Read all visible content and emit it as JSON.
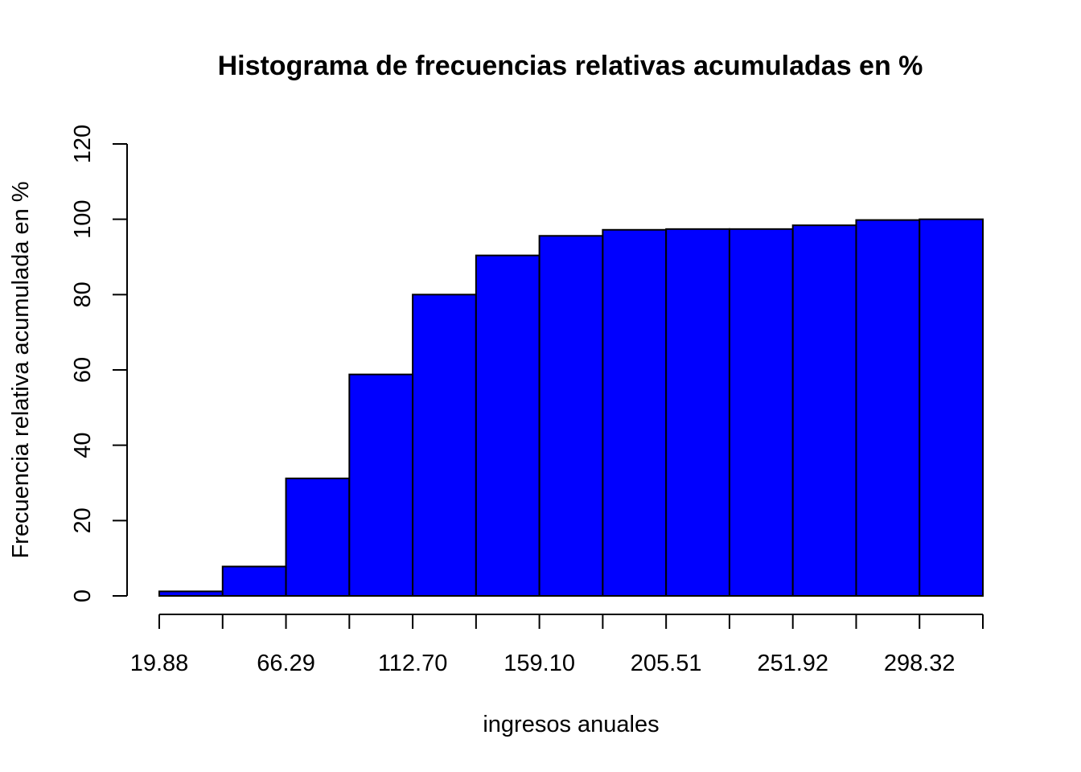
{
  "chart_data": {
    "type": "bar",
    "title": "Histograma de frecuencias relativas acumuladas en %",
    "xlabel": "ingresos anuales",
    "ylabel": "Frecuencia relativa acumulada en %",
    "bin_edges": [
      19.88,
      43.085,
      66.29,
      89.495,
      112.7,
      135.9,
      159.1,
      182.305,
      205.51,
      228.715,
      251.92,
      275.12,
      298.32,
      321.525
    ],
    "x_tick_values": [
      19.88,
      43.085,
      66.29,
      89.495,
      112.7,
      135.9,
      159.1,
      182.305,
      205.51,
      228.715,
      251.92,
      275.12,
      298.32,
      321.525
    ],
    "x_tick_labels": [
      {
        "value": 19.88,
        "label": "19.88"
      },
      {
        "value": 66.29,
        "label": "66.29"
      },
      {
        "value": 112.7,
        "label": "112.70"
      },
      {
        "value": 159.1,
        "label": "159.10"
      },
      {
        "value": 205.51,
        "label": "205.51"
      },
      {
        "value": 251.92,
        "label": "251.92"
      },
      {
        "value": 298.32,
        "label": "298.32"
      }
    ],
    "values": [
      1.2,
      7.8,
      31.2,
      58.8,
      80.0,
      90.4,
      95.6,
      97.2,
      97.4,
      97.4,
      98.4,
      99.8,
      100.0
    ],
    "y_ticks": [
      0,
      20,
      40,
      60,
      80,
      100,
      120
    ],
    "ylim": [
      0,
      120
    ],
    "grid": false,
    "colors": {
      "bar_fill": "#0000ff",
      "bar_stroke": "#000000",
      "axis": "#000000",
      "text": "#000000"
    }
  }
}
